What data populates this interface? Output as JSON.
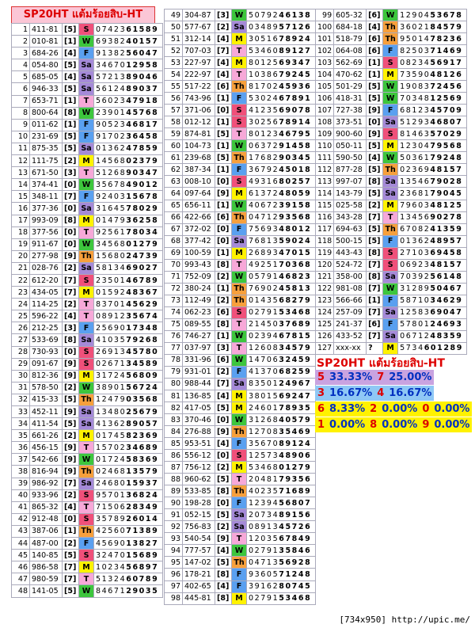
{
  "title": "SP20HT แต้มร้อยสิบ-HT",
  "day_colors": {
    "S": "#f0507a",
    "M": "#fff200",
    "T": "#f7a8d8",
    "W": "#3dc63d",
    "Th": "#f7a03c",
    "F": "#5aa0f0",
    "Sa": "#a58ad8",
    "?": "#ffffff"
  },
  "columns": [
    [
      [
        1,
        "411-81",
        "[5]",
        "S",
        "07423",
        "61589"
      ],
      [
        2,
        "010-81",
        "[1]",
        "W",
        "69382",
        "40157"
      ],
      [
        3,
        "684-26",
        "[4]",
        "F",
        "91382",
        "56047"
      ],
      [
        4,
        "054-80",
        "[5]",
        "Sa",
        "34670",
        "12958"
      ],
      [
        5,
        "685-05",
        "[4]",
        "Sa",
        "57213",
        "89046"
      ],
      [
        6,
        "946-33",
        "[5]",
        "Sa",
        "56124",
        "89037"
      ],
      [
        7,
        "653-71",
        "[1]",
        "T",
        "56023",
        "47918"
      ],
      [
        8,
        "800-64",
        "[8]",
        "W",
        "23901",
        "45768"
      ],
      [
        9,
        "011-62",
        "[1]",
        "F",
        "90523",
        "46817"
      ],
      [
        10,
        "231-69",
        "[5]",
        "F",
        "91702",
        "36458"
      ],
      [
        11,
        "875-35",
        "[5]",
        "Sa",
        "01362",
        "47859"
      ],
      [
        12,
        "111-75",
        "[2]",
        "M",
        "14568",
        "02379"
      ],
      [
        13,
        "671-50",
        "[3]",
        "T",
        "51268",
        "90347"
      ],
      [
        14,
        "374-41",
        "[0]",
        "W",
        "35678",
        "49012"
      ],
      [
        15,
        "348-11",
        "[7]",
        "F",
        "92403",
        "15678"
      ],
      [
        16,
        "377-36",
        "[0]",
        "Sa",
        "31645",
        "78029"
      ],
      [
        17,
        "993-09",
        "[8]",
        "M",
        "01479",
        "36258"
      ],
      [
        18,
        "377-56",
        "[0]",
        "T",
        "92561",
        "78034"
      ],
      [
        19,
        "911-67",
        "[0]",
        "W",
        "34568",
        "01279"
      ],
      [
        20,
        "277-98",
        "[9]",
        "Th",
        "15680",
        "24739"
      ],
      [
        21,
        "028-76",
        "[2]",
        "Sa",
        "58134",
        "69027"
      ],
      [
        22,
        "612-20",
        "[7]",
        "S",
        "23501",
        "46789"
      ],
      [
        23,
        "434-05",
        "[7]",
        "M",
        "01592",
        "48367"
      ],
      [
        24,
        "114-25",
        "[2]",
        "T",
        "83701",
        "45629"
      ],
      [
        25,
        "596-22",
        "[4]",
        "T",
        "08912",
        "35674"
      ],
      [
        26,
        "212-25",
        "[3]",
        "F",
        "25690",
        "17348"
      ],
      [
        27,
        "533-69",
        "[8]",
        "Sa",
        "41035",
        "79268"
      ],
      [
        28,
        "730-93",
        "[0]",
        "S",
        "26913",
        "45780"
      ],
      [
        29,
        "091-67",
        "[9]",
        "S",
        "02671",
        "34589"
      ],
      [
        30,
        "812-36",
        "[9]",
        "M",
        "31724",
        "56809"
      ],
      [
        31,
        "578-50",
        "[2]",
        "W",
        "38901",
        "56724"
      ],
      [
        32,
        "415-33",
        "[5]",
        "Th",
        "12479",
        "03568"
      ],
      [
        33,
        "452-11",
        "[9]",
        "Sa",
        "13480",
        "25679"
      ],
      [
        34,
        "411-54",
        "[5]",
        "Sa",
        "41362",
        "89057"
      ],
      [
        35,
        "661-26",
        "[2]",
        "M",
        "01745",
        "82369"
      ],
      [
        36,
        "456-15",
        "[9]",
        "T",
        "15702",
        "34689"
      ],
      [
        37,
        "542-66",
        "[9]",
        "W",
        "01724",
        "58369"
      ],
      [
        38,
        "816-94",
        "[9]",
        "Th",
        "02468",
        "13579"
      ],
      [
        39,
        "986-92",
        "[7]",
        "Sa",
        "24680",
        "15937"
      ],
      [
        40,
        "933-96",
        "[2]",
        "S",
        "95701",
        "36824"
      ],
      [
        41,
        "865-32",
        "[4]",
        "T",
        "71506",
        "28349"
      ],
      [
        42,
        "912-48",
        "[0]",
        "S",
        "35789",
        "26014"
      ],
      [
        43,
        "387-06",
        "[1]",
        "Th",
        "42560",
        "71389"
      ],
      [
        44,
        "487-00",
        "[2]",
        "F",
        "45690",
        "13827"
      ],
      [
        45,
        "140-85",
        "[5]",
        "S",
        "32470",
        "15689"
      ],
      [
        46,
        "986-58",
        "[7]",
        "M",
        "10234",
        "56897"
      ],
      [
        47,
        "980-59",
        "[7]",
        "T",
        "51324",
        "60789"
      ],
      [
        48,
        "141-05",
        "[5]",
        "W",
        "84671",
        "29035"
      ]
    ],
    [
      [
        49,
        "304-87",
        "[3]",
        "W",
        "50792",
        "46138"
      ],
      [
        50,
        "577-67",
        "[2]",
        "Sa",
        "03489",
        "57126"
      ],
      [
        51,
        "312-14",
        "[4]",
        "M",
        "30516",
        "78924"
      ],
      [
        52,
        "707-03",
        "[7]",
        "T",
        "53460",
        "89127"
      ],
      [
        53,
        "227-97",
        "[4]",
        "M",
        "80125",
        "69347"
      ],
      [
        54,
        "222-97",
        "[4]",
        "T",
        "10386",
        "79245"
      ],
      [
        55,
        "517-22",
        "[6]",
        "Th",
        "81702",
        "45936"
      ],
      [
        56,
        "743-96",
        "[1]",
        "F",
        "53024",
        "67891"
      ],
      [
        57,
        "371-06",
        "[0]",
        "S",
        "41235",
        "69078"
      ],
      [
        58,
        "012-12",
        "[1]",
        "S",
        "30256",
        "78914"
      ],
      [
        59,
        "874-81",
        "[5]",
        "T",
        "80123",
        "46795"
      ],
      [
        60,
        "104-73",
        "[1]",
        "W",
        "06372",
        "91458"
      ],
      [
        61,
        "239-68",
        "[5]",
        "Th",
        "17682",
        "90345"
      ],
      [
        62,
        "387-34",
        "[1]",
        "F",
        "36792",
        "45018"
      ],
      [
        63,
        "008-10",
        "[0]",
        "S",
        "49316",
        "80257"
      ],
      [
        64,
        "097-64",
        "[9]",
        "M",
        "61372",
        "48059"
      ],
      [
        65,
        "656-11",
        "[1]",
        "W",
        "40672",
        "39158"
      ],
      [
        66,
        "422-66",
        "[6]",
        "Th",
        "04712",
        "93568"
      ],
      [
        67,
        "372-02",
        "[0]",
        "F",
        "75693",
        "48012"
      ],
      [
        68,
        "377-42",
        "[0]",
        "Sa",
        "76813",
        "59024"
      ],
      [
        69,
        "100-59",
        "[1]",
        "M",
        "26893",
        "47015"
      ],
      [
        70,
        "993-43",
        "[8]",
        "T",
        "49251",
        "70368"
      ],
      [
        71,
        "752-09",
        "[2]",
        "W",
        "05791",
        "46823"
      ],
      [
        72,
        "380-24",
        "[1]",
        "Th",
        "76902",
        "45813"
      ],
      [
        73,
        "112-49",
        "[2]",
        "Th",
        "01435",
        "68279"
      ],
      [
        74,
        "062-23",
        "[6]",
        "S",
        "02791",
        "53468"
      ],
      [
        75,
        "089-55",
        "[8]",
        "T",
        "21450",
        "37689"
      ],
      [
        76,
        "746-27",
        "[1]",
        "W",
        "02394",
        "67815"
      ],
      [
        77,
        "037-97",
        "[3]",
        "T",
        "12608",
        "34579"
      ],
      [
        78,
        "331-96",
        "[6]",
        "W",
        "14706",
        "32459"
      ],
      [
        79,
        "931-01",
        "[2]",
        "F",
        "41370",
        "68259"
      ],
      [
        80,
        "988-44",
        "[7]",
        "Sa",
        "83501",
        "24967"
      ],
      [
        81,
        "136-85",
        "[4]",
        "M",
        "38015",
        "69247"
      ],
      [
        82,
        "417-05",
        "[5]",
        "M",
        "24601",
        "78935"
      ],
      [
        83,
        "370-46",
        "[0]",
        "W",
        "31268",
        "40579"
      ],
      [
        84,
        "276-88",
        "[9]",
        "Th",
        "12708",
        "35469"
      ],
      [
        85,
        "953-51",
        "[4]",
        "F",
        "35670",
        "89124"
      ],
      [
        86,
        "556-12",
        "[0]",
        "S",
        "12573",
        "48906"
      ],
      [
        87,
        "756-12",
        "[2]",
        "M",
        "53468",
        "01279"
      ],
      [
        88,
        "960-62",
        "[5]",
        "T",
        "20481",
        "79356"
      ],
      [
        89,
        "533-85",
        "[8]",
        "Th",
        "40235",
        "71689"
      ],
      [
        90,
        "198-28",
        "[0]",
        "F",
        "12394",
        "56807"
      ],
      [
        91,
        "052-15",
        "[5]",
        "Sa",
        "20734",
        "89156"
      ],
      [
        92,
        "756-83",
        "[2]",
        "Sa",
        "08913",
        "45726"
      ],
      [
        93,
        "540-54",
        "[9]",
        "T",
        "12035",
        "67849"
      ],
      [
        94,
        "777-57",
        "[4]",
        "W",
        "02791",
        "35846"
      ],
      [
        95,
        "147-02",
        "[5]",
        "Th",
        "04713",
        "56928"
      ],
      [
        96,
        "178-21",
        "[8]",
        "F",
        "93605",
        "71248"
      ],
      [
        97,
        "402-65",
        "[4]",
        "F",
        "39162",
        "80745"
      ],
      [
        98,
        "445-81",
        "[8]",
        "M",
        "02791",
        "53468"
      ]
    ],
    [
      [
        99,
        "605-32",
        "[6]",
        "W",
        "12904",
        "53678"
      ],
      [
        100,
        "684-18",
        "[4]",
        "Th",
        "36021",
        "84579"
      ],
      [
        101,
        "518-79",
        "[6]",
        "Th",
        "95014",
        "78236"
      ],
      [
        102,
        "064-08",
        "[6]",
        "F",
        "82503",
        "71469"
      ],
      [
        103,
        "562-69",
        "[1]",
        "S",
        "08234",
        "56917"
      ],
      [
        104,
        "470-62",
        "[1]",
        "M",
        "73590",
        "48126"
      ],
      [
        105,
        "501-29",
        "[5]",
        "W",
        "19083",
        "72456"
      ],
      [
        106,
        "418-31",
        "[5]",
        "W",
        "70348",
        "12569"
      ],
      [
        107,
        "727-38",
        "[9]",
        "F",
        "68123",
        "45709"
      ],
      [
        108,
        "373-51",
        "[0]",
        "Sa",
        "51293",
        "46807"
      ],
      [
        109,
        "900-60",
        "[9]",
        "S",
        "81463",
        "57029"
      ],
      [
        110,
        "050-11",
        "[5]",
        "M",
        "12304",
        "79568"
      ],
      [
        111,
        "590-50",
        "[4]",
        "W",
        "50361",
        "79248"
      ],
      [
        112,
        "877-28",
        "[5]",
        "Th",
        "02369",
        "48157"
      ],
      [
        113,
        "997-07",
        "[8]",
        "Sa",
        "13546",
        "79028"
      ],
      [
        114,
        "143-79",
        "[5]",
        "Sa",
        "23681",
        "79045"
      ],
      [
        115,
        "025-58",
        "[2]",
        "M",
        "79603",
        "48125"
      ],
      [
        116,
        "343-28",
        "[7]",
        "T",
        "13456",
        "90278"
      ],
      [
        117,
        "694-63",
        "[5]",
        "Th",
        "67082",
        "41359"
      ],
      [
        118,
        "500-15",
        "[5]",
        "F",
        "01362",
        "48957"
      ],
      [
        119,
        "443-43",
        "[8]",
        "S",
        "27103",
        "69458"
      ],
      [
        120,
        "524-72",
        "[7]",
        "S",
        "06923",
        "48157"
      ],
      [
        121,
        "358-00",
        "[8]",
        "Sa",
        "70392",
        "56148"
      ],
      [
        122,
        "981-08",
        "[7]",
        "W",
        "31289",
        "50467"
      ],
      [
        123,
        "566-66",
        "[1]",
        "F",
        "58710",
        "34629"
      ],
      [
        124,
        "257-09",
        "[7]",
        "Sa",
        "12583",
        "69047"
      ],
      [
        125,
        "241-37",
        "[6]",
        "F",
        "57801",
        "24693"
      ],
      [
        126,
        "433-52",
        "[7]",
        "Sa",
        "06712",
        "48359"
      ],
      [
        127,
        "xxx-xx",
        "?",
        "M",
        "5734",
        "601289"
      ]
    ]
  ],
  "summary": {
    "title": "SP20HT แต้มร้อยสิบ-HT",
    "rows": [
      {
        "color": "#c9a3e0",
        "cells": [
          [
            "5",
            "33.33%"
          ],
          [
            "7",
            "25.00%"
          ]
        ]
      },
      {
        "color": "#8fc8f5",
        "cells": [
          [
            "3",
            "16.67%"
          ],
          [
            "4",
            "16.67%"
          ]
        ]
      },
      {
        "color": "#fff200",
        "cells": [
          [
            "6",
            "8.33%"
          ],
          [
            "2",
            "0.00%"
          ],
          [
            "0",
            "0.00%"
          ]
        ]
      },
      {
        "color": "#fff200",
        "cells": [
          [
            "1",
            "0.00%"
          ],
          [
            "8",
            "0.00%"
          ],
          [
            "9",
            "0.00%"
          ]
        ]
      }
    ]
  },
  "footer": "[734x950] http://upic.me/"
}
